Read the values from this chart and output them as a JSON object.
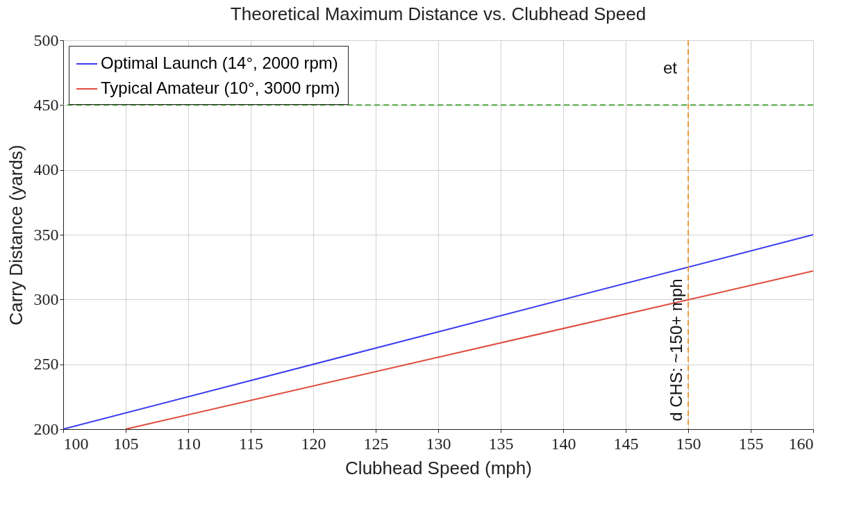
{
  "chart_data": {
    "type": "line",
    "title": "Theoretical Maximum Distance vs. Clubhead Speed",
    "xlabel": "Clubhead Speed (mph)",
    "ylabel": "Carry Distance (yards)",
    "series": [
      {
        "name": "Optimal Launch (14°, 2000 rpm)",
        "color": "#3a3af0",
        "x": [
          100,
          160
        ],
        "values": [
          200,
          350
        ]
      },
      {
        "name": "Typical Amateur (10°, 3000 rpm)",
        "color": "#e04a3c",
        "x": [
          105,
          160
        ],
        "values": [
          200,
          322
        ]
      }
    ],
    "xlim": [
      100,
      160
    ],
    "xticks": [
      100,
      105,
      110,
      115,
      120,
      125,
      130,
      135,
      140,
      145,
      150,
      155,
      160
    ],
    "ylim": [
      200,
      500
    ],
    "yticks": [
      200,
      250,
      300,
      350,
      400,
      450,
      500
    ],
    "ref_lines": [
      {
        "axis": "y",
        "value": 450,
        "label": "et",
        "color": "#4ca53a",
        "line_style": "dashed"
      },
      {
        "axis": "x",
        "value": 150,
        "label": "d CHS: ~150+ mph",
        "color": "#f0993b",
        "line_style": "dashed"
      }
    ],
    "grid": true,
    "legend": "top left",
    "marker": "none",
    "line_style": "solid"
  }
}
